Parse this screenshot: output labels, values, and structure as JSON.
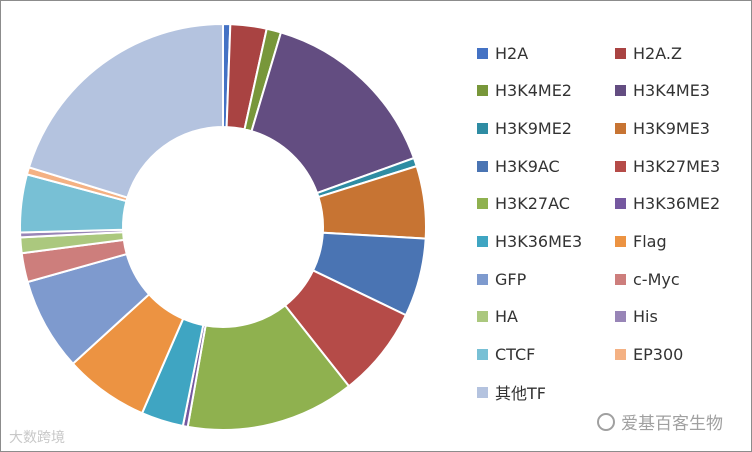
{
  "chart_data": {
    "type": "pie",
    "subtype": "donut",
    "title": "",
    "legend_position": "right",
    "slices": [
      {
        "label": "H2A",
        "value": 0.6,
        "color": "#4472C4"
      },
      {
        "label": "H2A.Z",
        "value": 3.0,
        "color": "#A94342"
      },
      {
        "label": "H3K4ME2",
        "value": 1.2,
        "color": "#78973A"
      },
      {
        "label": "H3K4ME3",
        "value": 15.5,
        "color": "#634D81"
      },
      {
        "label": "H3K9ME2",
        "value": 0.7,
        "color": "#2E8CA3"
      },
      {
        "label": "H3K9ME3",
        "value": 6.0,
        "color": "#C77433"
      },
      {
        "label": "H3K9AC",
        "value": 6.5,
        "color": "#4A74B3"
      },
      {
        "label": "H3K27ME3",
        "value": 7.5,
        "color": "#B54B48"
      },
      {
        "label": "H3K27AC",
        "value": 14.0,
        "color": "#8FB14F"
      },
      {
        "label": "H3K36ME2",
        "value": 0.4,
        "color": "#7558A0"
      },
      {
        "label": "H3K36ME3",
        "value": 3.5,
        "color": "#3FA5C2"
      },
      {
        "label": "Flag",
        "value": 7.0,
        "color": "#EC9342"
      },
      {
        "label": "GFP",
        "value": 7.7,
        "color": "#7E9ACE"
      },
      {
        "label": "c-Myc",
        "value": 2.4,
        "color": "#CD7E7C"
      },
      {
        "label": "HA",
        "value": 1.3,
        "color": "#ABC87E"
      },
      {
        "label": "His",
        "value": 0.4,
        "color": "#9885B7"
      },
      {
        "label": "CTCF",
        "value": 4.8,
        "color": "#78C0D5"
      },
      {
        "label": "EP300",
        "value": 0.6,
        "color": "#F4B183"
      },
      {
        "label": "其他TF",
        "value": 21.1,
        "color": "#B4C3DF"
      }
    ]
  },
  "watermarks": {
    "left": "大数跨境",
    "right": "爱基百客生物"
  }
}
